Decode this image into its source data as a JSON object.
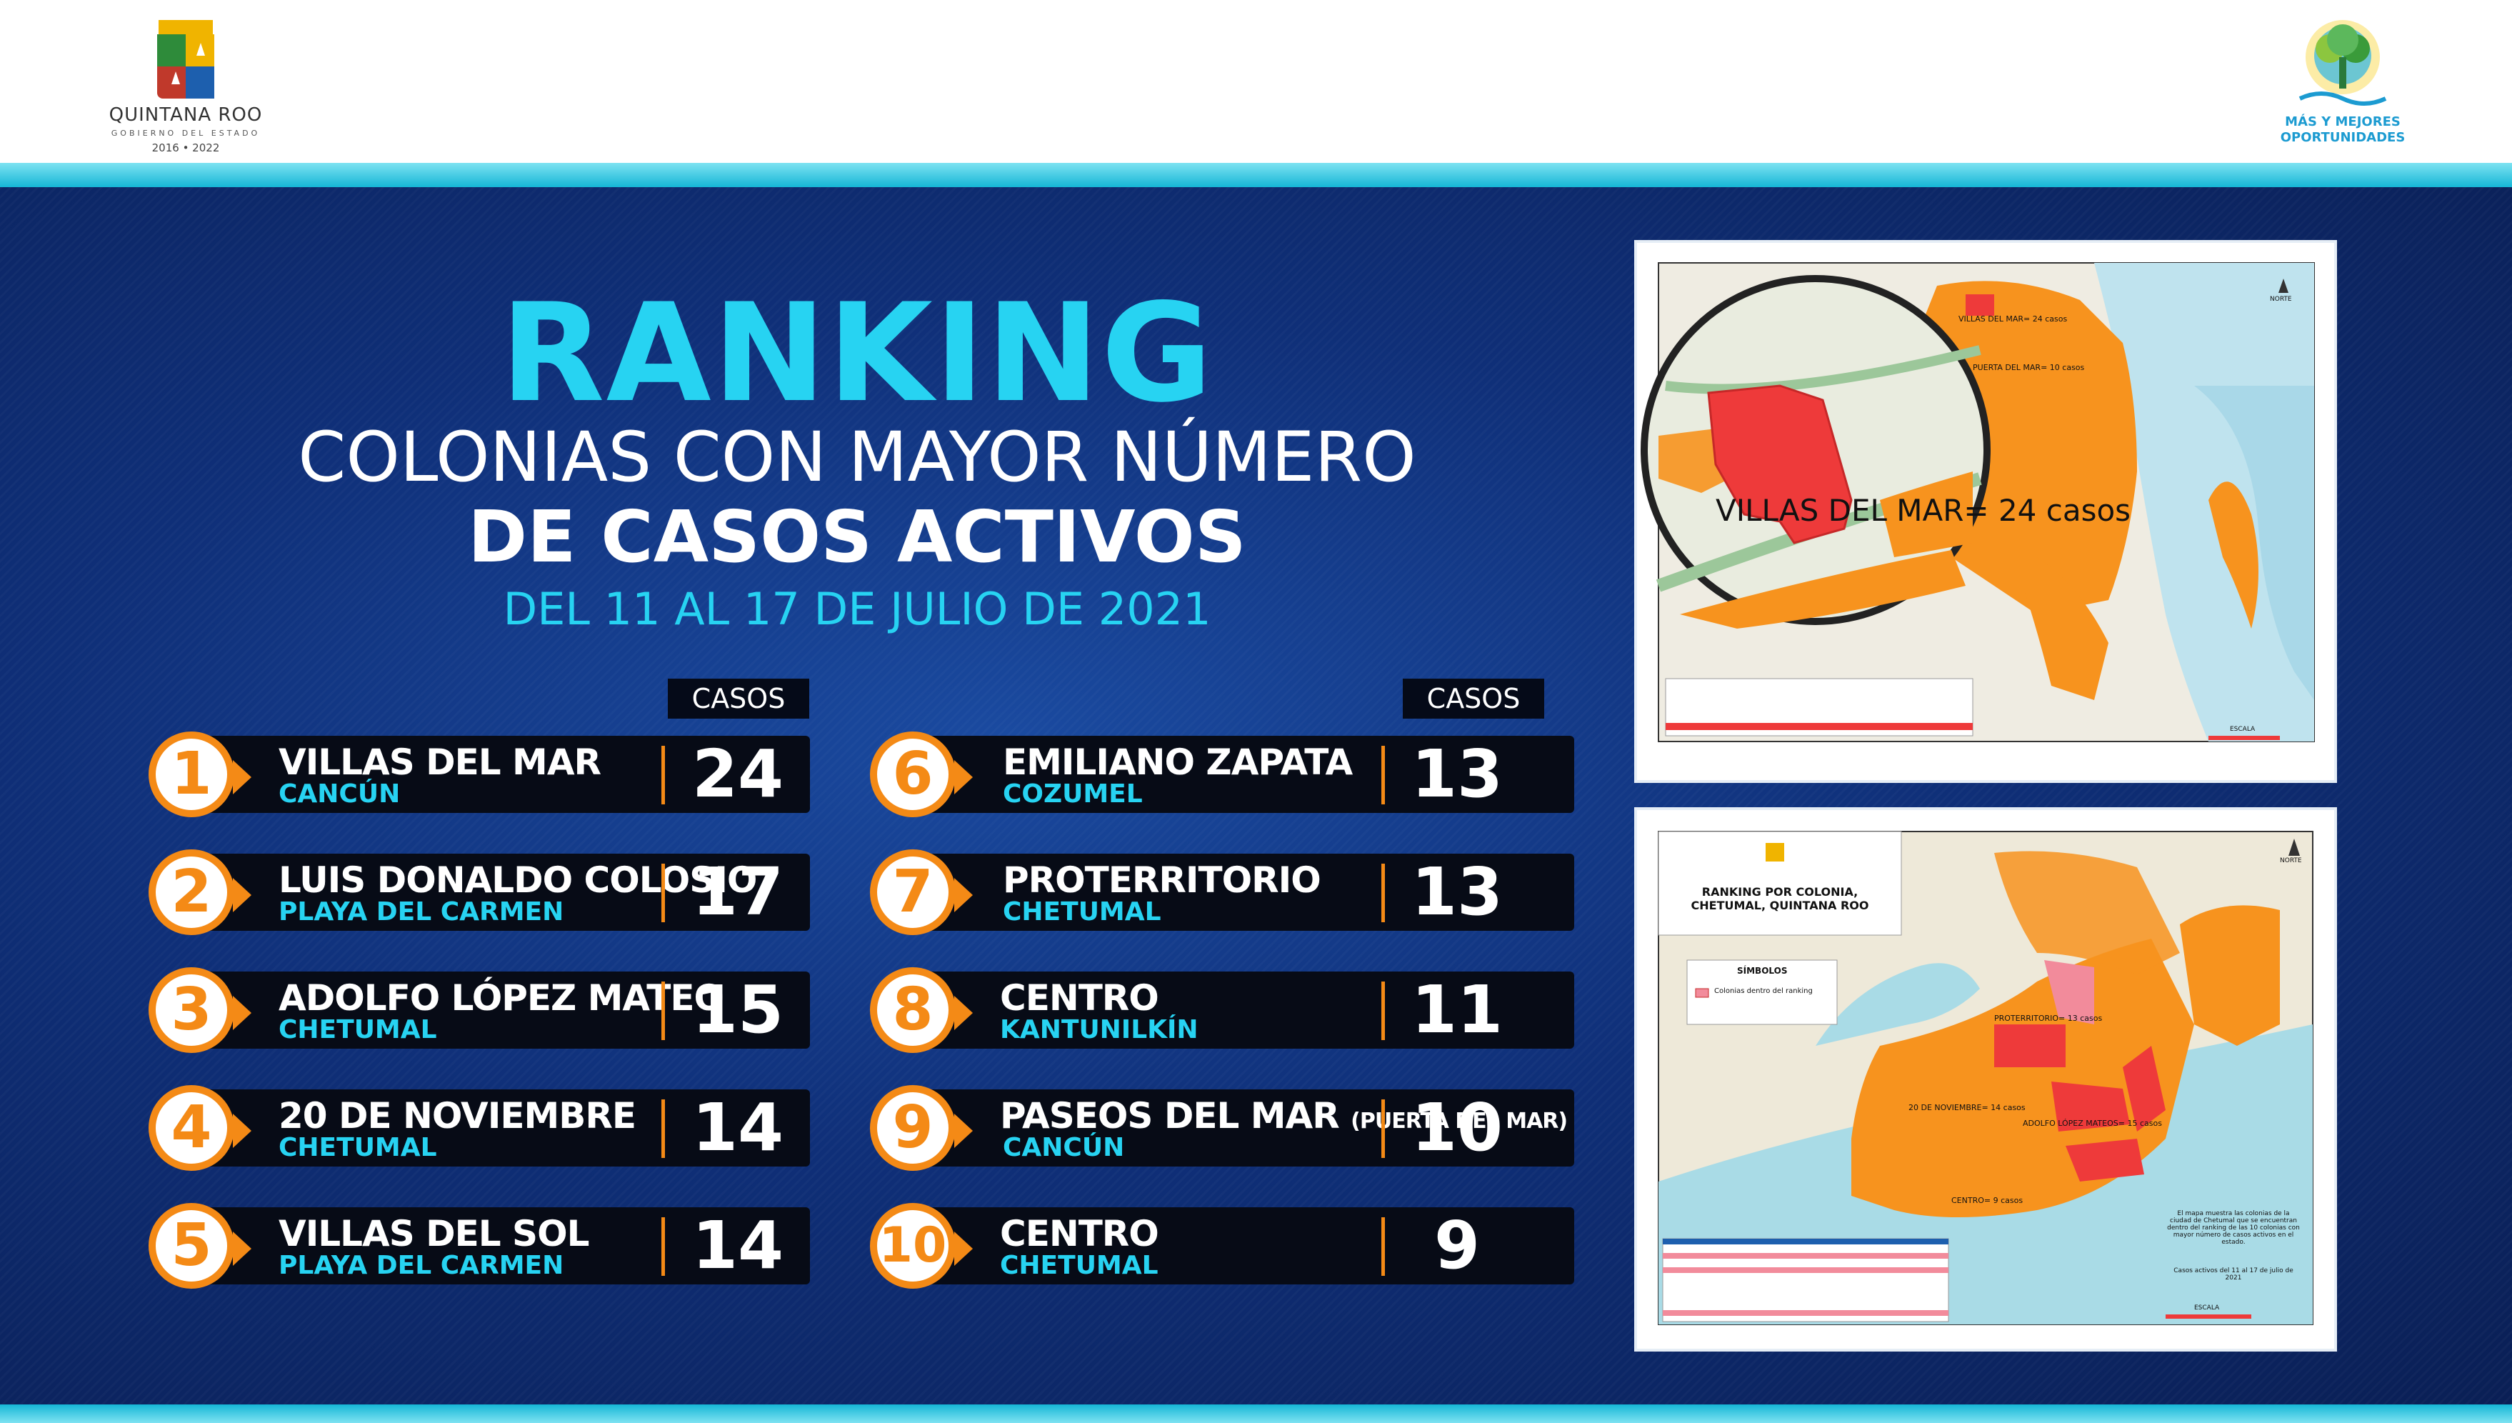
{
  "header": {
    "left_logo": {
      "line1": "QUINTANA ROO",
      "line2": "GOBIERNO DEL ESTADO",
      "line3": "2016 • 2022",
      "icon": "state-seal-icon"
    },
    "right_logo": {
      "line1": "MÁS Y MEJORES",
      "line2": "OPORTUNIDADES",
      "icon": "tree-logo-icon"
    }
  },
  "title": "RANKING",
  "subtitle_line1": "COLONIAS CON MAYOR NÚMERO",
  "subtitle_line2": "DE CASOS ACTIVOS",
  "date_range": "DEL 11 AL 17 DE JULIO DE 2021",
  "casos_label": "CASOS",
  "ranking": [
    {
      "rank": "1",
      "colonia": "VILLAS DEL MAR",
      "city": "CANCÚN",
      "cases": "24"
    },
    {
      "rank": "2",
      "colonia": "LUIS DONALDO COLOSIO",
      "city": "PLAYA DEL CARMEN",
      "cases": "17"
    },
    {
      "rank": "3",
      "colonia": "ADOLFO LÓPEZ MATEO",
      "city": "CHETUMAL",
      "cases": "15"
    },
    {
      "rank": "4",
      "colonia": "20 DE NOVIEMBRE",
      "city": "CHETUMAL",
      "cases": "14"
    },
    {
      "rank": "5",
      "colonia": "VILLAS DEL SOL",
      "city": "PLAYA DEL CARMEN",
      "cases": "14"
    },
    {
      "rank": "6",
      "colonia": "EMILIANO ZAPATA",
      "city": "COZUMEL",
      "cases": "13"
    },
    {
      "rank": "7",
      "colonia": "PROTERRITORIO",
      "city": "CHETUMAL",
      "cases": "13"
    },
    {
      "rank": "8",
      "colonia": "CENTRO",
      "city": "KANTUNILKÍN",
      "cases": "11"
    },
    {
      "rank": "9",
      "colonia": "PASEOS DEL MAR",
      "colonia_note": "(PUERTA DEL MAR)",
      "city": "CANCÚN",
      "cases": "10"
    },
    {
      "rank": "10",
      "colonia": "CENTRO",
      "city": "CHETUMAL",
      "cases": "9"
    }
  ],
  "map_cancun": {
    "callout": "VILLAS DEL MAR= 24 casos",
    "label_top": "VILLAS DEL MAR= 24 casos",
    "label_mid": "PUERTA DEL MAR= 10 casos",
    "north": "NORTE",
    "scale_label": "ESCALA"
  },
  "map_chetumal": {
    "title": "RANKING POR COLONIA, CHETUMAL, QUINTANA ROO",
    "symbols_title": "SÍMBOLOS",
    "symbols_item": "Colonias dentro del ranking",
    "label_proterritorio": "PROTERRITORIO= 13 casos",
    "label_20nov": "20 DE NOVIEMBRE= 14 casos",
    "label_adolfo": "ADOLFO LÓPEZ MATEOS= 15 casos",
    "label_centro": "CENTRO= 9 casos",
    "note": "El mapa muestra las colonias de la ciudad de Chetumal que se encuentran dentro del ranking de las 10 colonias con mayor número de casos activos en el estado.",
    "note_dates": "Casos activos del 11 al 17 de julio de 2021",
    "north": "NORTE",
    "scale_label": "ESCALA"
  },
  "colors": {
    "accent_cyan": "#27d3f2",
    "accent_orange": "#f48a16",
    "navy": "#0f2f78",
    "map_orange": "#f7931e",
    "map_red": "#ee3a3a"
  }
}
